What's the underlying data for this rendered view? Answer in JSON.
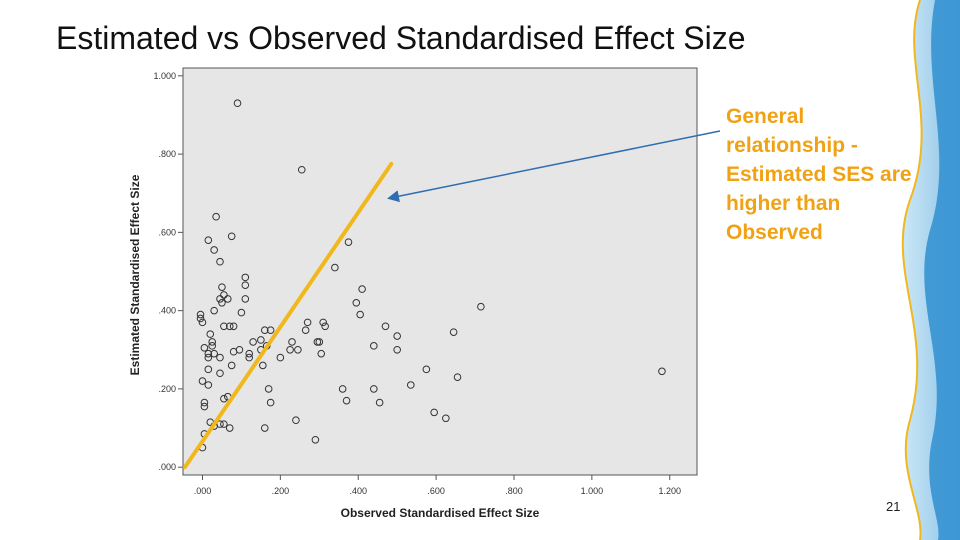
{
  "slide": {
    "title": "Estimated vs Observed Standardised Effect Size",
    "annotation": "General relationship - Estimated SES are higher than Observed",
    "page_number": "21"
  },
  "colors": {
    "trend_line": "#f0b81c",
    "arrow": "#2f6db0",
    "annotation_text": "#f0a214",
    "plot_background": "#e6e6e6",
    "marker_stroke": "#333333"
  },
  "chart_data": {
    "type": "scatter",
    "title": "",
    "xlabel": "Observed Standardised Effect Size",
    "ylabel": "Estimated Standardised Effect Size",
    "xlim": [
      -0.05,
      1.27
    ],
    "ylim": [
      -0.02,
      1.02
    ],
    "x_ticks": [
      0,
      0.2,
      0.4,
      0.6,
      0.8,
      1.0,
      1.2
    ],
    "x_tick_labels": [
      ".000",
      ".200",
      ".400",
      ".600",
      ".800",
      "1.000",
      "1.200"
    ],
    "y_ticks": [
      0,
      0.2,
      0.4,
      0.6,
      0.8,
      1.0
    ],
    "y_tick_labels": [
      ".000",
      ".200",
      ".400",
      ".600",
      ".800",
      "1.000"
    ],
    "grid": false,
    "points": [
      [
        0.09,
        0.93
      ],
      [
        0.255,
        0.76
      ],
      [
        0.035,
        0.64
      ],
      [
        0.075,
        0.59
      ],
      [
        0.015,
        0.58
      ],
      [
        0.03,
        0.555
      ],
      [
        0.045,
        0.525
      ],
      [
        0.11,
        0.485
      ],
      [
        0.11,
        0.465
      ],
      [
        0.05,
        0.46
      ],
      [
        0.055,
        0.44
      ],
      [
        0.045,
        0.43
      ],
      [
        0.05,
        0.42
      ],
      [
        0.065,
        0.43
      ],
      [
        0.11,
        0.43
      ],
      [
        -0.005,
        0.39
      ],
      [
        -0.005,
        0.38
      ],
      [
        0.0,
        0.37
      ],
      [
        0.03,
        0.4
      ],
      [
        0.055,
        0.36
      ],
      [
        0.07,
        0.36
      ],
      [
        0.08,
        0.36
      ],
      [
        0.1,
        0.395
      ],
      [
        0.02,
        0.34
      ],
      [
        0.025,
        0.32
      ],
      [
        0.025,
        0.31
      ],
      [
        0.005,
        0.305
      ],
      [
        0.015,
        0.29
      ],
      [
        0.03,
        0.29
      ],
      [
        0.045,
        0.28
      ],
      [
        0.015,
        0.28
      ],
      [
        0.08,
        0.295
      ],
      [
        0.095,
        0.3
      ],
      [
        0.12,
        0.29
      ],
      [
        0.12,
        0.28
      ],
      [
        0.16,
        0.35
      ],
      [
        0.175,
        0.35
      ],
      [
        0.13,
        0.32
      ],
      [
        0.15,
        0.325
      ],
      [
        0.165,
        0.31
      ],
      [
        0.15,
        0.3
      ],
      [
        0.155,
        0.26
      ],
      [
        0.015,
        0.25
      ],
      [
        0.045,
        0.24
      ],
      [
        0.075,
        0.26
      ],
      [
        0.015,
        0.21
      ],
      [
        0.0,
        0.22
      ],
      [
        0.005,
        0.165
      ],
      [
        0.005,
        0.155
      ],
      [
        0.02,
        0.115
      ],
      [
        0.03,
        0.105
      ],
      [
        0.045,
        0.11
      ],
      [
        0.055,
        0.11
      ],
      [
        0.055,
        0.175
      ],
      [
        0.065,
        0.18
      ],
      [
        0.07,
        0.1
      ],
      [
        0.0,
        0.05
      ],
      [
        0.005,
        0.085
      ],
      [
        0.16,
        0.1
      ],
      [
        0.24,
        0.12
      ],
      [
        0.29,
        0.07
      ],
      [
        0.17,
        0.2
      ],
      [
        0.175,
        0.165
      ],
      [
        0.2,
        0.28
      ],
      [
        0.225,
        0.3
      ],
      [
        0.23,
        0.32
      ],
      [
        0.245,
        0.3
      ],
      [
        0.265,
        0.35
      ],
      [
        0.27,
        0.37
      ],
      [
        0.295,
        0.32
      ],
      [
        0.3,
        0.32
      ],
      [
        0.305,
        0.29
      ],
      [
        0.31,
        0.37
      ],
      [
        0.315,
        0.36
      ],
      [
        0.34,
        0.51
      ],
      [
        0.375,
        0.575
      ],
      [
        0.395,
        0.42
      ],
      [
        0.41,
        0.455
      ],
      [
        0.405,
        0.39
      ],
      [
        0.44,
        0.31
      ],
      [
        0.36,
        0.2
      ],
      [
        0.37,
        0.17
      ],
      [
        0.44,
        0.2
      ],
      [
        0.455,
        0.165
      ],
      [
        0.47,
        0.36
      ],
      [
        0.5,
        0.335
      ],
      [
        0.5,
        0.3
      ],
      [
        0.535,
        0.21
      ],
      [
        0.575,
        0.25
      ],
      [
        0.595,
        0.14
      ],
      [
        0.625,
        0.125
      ],
      [
        0.645,
        0.345
      ],
      [
        0.655,
        0.23
      ],
      [
        0.715,
        0.41
      ],
      [
        1.18,
        0.245
      ]
    ],
    "trend_line": [
      [
        -0.045,
        0.0
      ],
      [
        0.485,
        0.775
      ]
    ]
  }
}
